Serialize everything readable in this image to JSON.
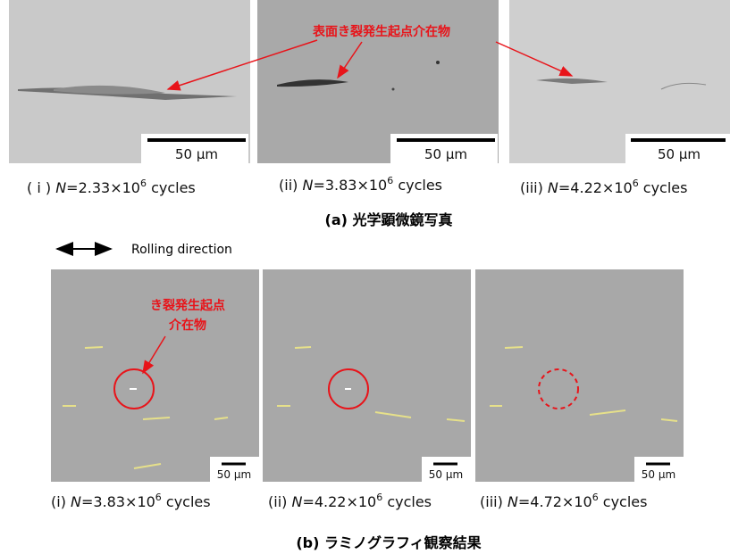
{
  "panel_a": {
    "annotation": "表面き裂発生起点介在物",
    "images": [
      {
        "scale_bar": "50 μm",
        "caption": {
          "label": "( i )",
          "n": "N",
          "value": "=2.33×10",
          "exp": "6",
          "unit": "cycles"
        }
      },
      {
        "scale_bar": "50 μm",
        "caption": {
          "label": "(ii)",
          "n": "N",
          "value": "=3.83×10",
          "exp": "6",
          "unit": "cycles"
        }
      },
      {
        "scale_bar": "50 μm",
        "caption": {
          "label": "(iii)",
          "n": "N",
          "value": "=4.22×10",
          "exp": "6",
          "unit": "cycles"
        }
      }
    ],
    "title": "(a) 光学顕微鏡写真"
  },
  "rolling_direction": "Rolling direction",
  "panel_b": {
    "annotation": [
      "き裂発生起点",
      "介在物"
    ],
    "images": [
      {
        "scale_bar": "50 μm",
        "caption": {
          "label": "(i)",
          "n": "N",
          "value": "=3.83×10",
          "exp": "6",
          "unit": "cycles"
        }
      },
      {
        "scale_bar": "50 μm",
        "caption": {
          "label": "(ii)",
          "n": "N",
          "value": "=4.22×10",
          "exp": "6",
          "unit": "cycles"
        }
      },
      {
        "scale_bar": "50 μm",
        "caption": {
          "label": "(iii)",
          "n": "N",
          "value": "=4.72×10",
          "exp": "6",
          "unit": "cycles"
        }
      }
    ],
    "title": "(b) ラミノグラフィ観察結果"
  }
}
